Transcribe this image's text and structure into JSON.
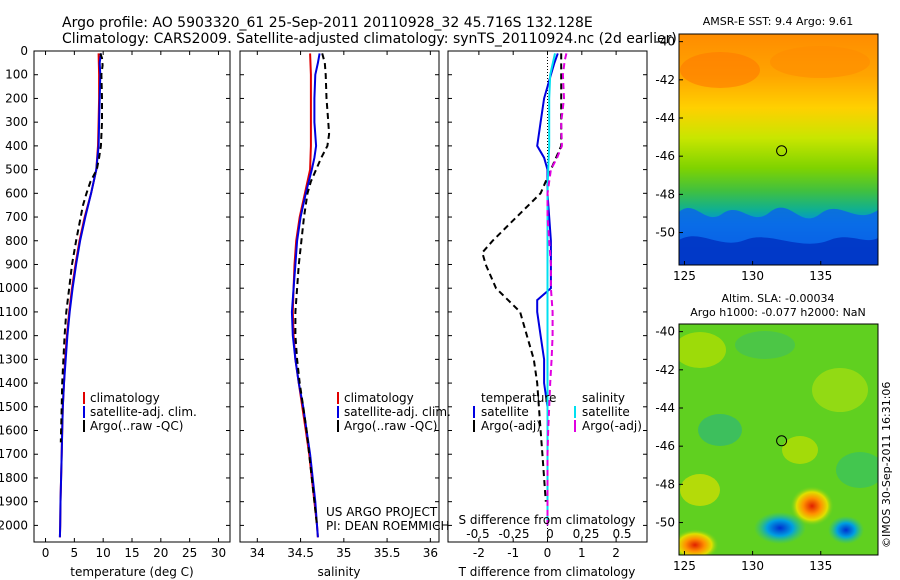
{
  "header": {
    "line1": "Argo profile: AO 5903320_61 25-Sep-2011 20110928_32 45.716S 132.128E",
    "line2": "Climatology: CARS2009. Satellite-adjusted climatology: synTS_20110924.nc (2d earlier)"
  },
  "depth_ticks": [
    0,
    100,
    200,
    300,
    400,
    500,
    600,
    700,
    800,
    900,
    1000,
    1100,
    1200,
    1300,
    1400,
    1500,
    1600,
    1700,
    1800,
    1900,
    2000
  ],
  "chart_data": [
    {
      "type": "line",
      "panel": "temperature",
      "xlabel": "temperature (deg C)",
      "xticks": [
        0,
        5,
        10,
        15,
        20,
        25,
        30
      ],
      "xlim": [
        -2,
        32
      ],
      "ylim": [
        2070,
        0
      ],
      "legend": [
        "climatology",
        "satellite-adj. clim.",
        "Argo(..raw -QC)"
      ],
      "series": [
        {
          "name": "climatology",
          "color": "#e00000",
          "dash": "",
          "depth": [
            10,
            100,
            200,
            300,
            400,
            500,
            600,
            700,
            800,
            900,
            1000,
            1100,
            1200,
            1300,
            1400,
            1500,
            1600,
            1700,
            1800,
            1900,
            2000,
            2050
          ],
          "values": [
            9.2,
            9.3,
            9.3,
            9.2,
            9.1,
            8.8,
            7.9,
            6.8,
            5.9,
            5.2,
            4.6,
            4.1,
            3.7,
            3.4,
            3.2,
            3.0,
            2.9,
            2.8,
            2.7,
            2.6,
            2.55,
            2.5
          ]
        },
        {
          "name": "satellite-adj. clim.",
          "color": "#0000e0",
          "dash": "",
          "depth": [
            10,
            50,
            100,
            200,
            300,
            400,
            500,
            600,
            700,
            800,
            900,
            1000,
            1100,
            1200,
            1300,
            1400,
            1500,
            1600,
            1700,
            1800,
            1900,
            2000,
            2050
          ],
          "values": [
            9.6,
            9.4,
            9.5,
            9.4,
            9.3,
            9.2,
            8.8,
            7.9,
            6.9,
            6.0,
            5.3,
            4.7,
            4.2,
            3.8,
            3.5,
            3.2,
            3.0,
            2.9,
            2.8,
            2.7,
            2.6,
            2.55,
            2.5
          ]
        },
        {
          "name": "Argo(..raw -QC)",
          "color": "#000000",
          "dash": "6,4",
          "depth": [
            10,
            30,
            60,
            100,
            200,
            300,
            400,
            450,
            500,
            550,
            600,
            650,
            700,
            800,
            900,
            1000,
            1100,
            1200,
            1300,
            1400,
            1500,
            1600,
            1650
          ],
          "values": [
            9.5,
            9.8,
            9.9,
            9.7,
            9.8,
            9.8,
            9.6,
            9.3,
            8.9,
            7.8,
            7.1,
            6.5,
            6.1,
            5.3,
            4.6,
            4.1,
            3.6,
            3.3,
            3.1,
            2.9,
            2.8,
            2.7,
            2.65
          ]
        }
      ]
    },
    {
      "type": "line",
      "panel": "salinity",
      "xlabel": "salinity",
      "xticks": [
        34,
        34.5,
        35,
        35.5,
        36
      ],
      "xlim": [
        33.8,
        36.1
      ],
      "ylim": [
        2070,
        0
      ],
      "legend": [
        "climatology",
        "satellite-adj. clim.",
        "Argo(..raw -QC)"
      ],
      "series": [
        {
          "name": "climatology",
          "color": "#e00000",
          "dash": "",
          "depth": [
            10,
            100,
            200,
            300,
            400,
            500,
            600,
            700,
            800,
            900,
            1000,
            1100,
            1200,
            1300,
            1400,
            1500,
            1600,
            1700,
            1800,
            1900,
            2000,
            2050
          ],
          "values": [
            34.61,
            34.62,
            34.62,
            34.62,
            34.62,
            34.61,
            34.55,
            34.49,
            34.45,
            34.43,
            34.42,
            34.41,
            34.42,
            34.44,
            34.48,
            34.52,
            34.56,
            34.6,
            34.63,
            34.66,
            34.69,
            34.7
          ]
        },
        {
          "name": "satellite-adj. clim.",
          "color": "#0000e0",
          "dash": "",
          "depth": [
            10,
            50,
            100,
            200,
            300,
            400,
            450,
            500,
            600,
            700,
            800,
            900,
            1000,
            1100,
            1200,
            1300,
            1400,
            1500,
            1600,
            1700,
            1800,
            1900,
            2000,
            2050
          ],
          "values": [
            34.72,
            34.7,
            34.67,
            34.66,
            34.66,
            34.68,
            34.66,
            34.63,
            34.56,
            34.5,
            34.46,
            34.44,
            34.42,
            34.4,
            34.41,
            34.44,
            34.48,
            34.53,
            34.57,
            34.61,
            34.64,
            34.67,
            34.69,
            34.7
          ]
        },
        {
          "name": "Argo(..raw -QC)",
          "color": "#000000",
          "dash": "6,4",
          "depth": [
            10,
            50,
            100,
            200,
            300,
            350,
            400,
            450,
            500,
            550,
            600,
            700,
            800,
            900,
            1000,
            1100,
            1200,
            1300,
            1400,
            1500,
            1600,
            1700,
            1800,
            1900,
            2000
          ],
          "values": [
            34.75,
            34.78,
            34.79,
            34.8,
            34.82,
            34.83,
            34.81,
            34.74,
            34.68,
            34.62,
            34.58,
            34.54,
            34.51,
            34.48,
            34.46,
            34.44,
            34.44,
            34.46,
            34.49,
            34.53,
            34.57,
            34.6,
            34.63,
            34.66,
            34.69
          ]
        }
      ]
    },
    {
      "type": "line",
      "panel": "difference",
      "xlabel": "T difference from climatology",
      "xlabel2": "S difference from climatology",
      "xticks": [
        -2,
        -1,
        0,
        1,
        2
      ],
      "xticks2": [
        "-0.5",
        "-0.25",
        "0",
        "0.25",
        "0.5"
      ],
      "xlim": [
        -2.9,
        2.9
      ],
      "ylim": [
        2070,
        0
      ],
      "legend_temperature_title": "temperature",
      "legend_salinity_title": "salinity",
      "legend": [
        "satellite",
        "Argo(-adj)",
        "satellite",
        "Argo(-adj)"
      ],
      "series": [
        {
          "name": "temperature satellite",
          "color": "#0000e0",
          "dash": "",
          "depth": [
            10,
            50,
            100,
            150,
            200,
            300,
            400,
            450,
            500,
            550,
            600,
            700,
            800,
            900,
            1000,
            1050,
            1100,
            1200,
            1300,
            1400,
            1500,
            1600,
            1700,
            1800,
            1900,
            2000
          ],
          "values": [
            0.3,
            0.2,
            0.1,
            0.0,
            -0.1,
            -0.2,
            -0.3,
            -0.1,
            0.0,
            0.0,
            0.0,
            0.05,
            0.1,
            0.1,
            0.1,
            -0.3,
            -0.3,
            -0.2,
            -0.1,
            -0.1,
            0.0,
            0.0,
            0.0,
            0.0,
            0.0,
            0.0
          ]
        },
        {
          "name": "temperature Argo(-adj)",
          "color": "#000000",
          "dash": "6,4",
          "depth": [
            10,
            100,
            200,
            300,
            400,
            500,
            600,
            700,
            800,
            850,
            900,
            1000,
            1100,
            1200,
            1300,
            1400,
            1500,
            1600,
            1700,
            1800,
            1900
          ],
          "values": [
            0.4,
            0.4,
            0.4,
            0.4,
            0.4,
            0.1,
            -0.2,
            -0.9,
            -1.6,
            -1.9,
            -1.8,
            -1.5,
            -0.8,
            -0.6,
            -0.4,
            -0.3,
            -0.25,
            -0.2,
            -0.15,
            -0.1,
            -0.05
          ]
        },
        {
          "name": "salinity satellite",
          "color": "#00e0f0",
          "dash": "",
          "depth": [
            10,
            100,
            200,
            300,
            400,
            500,
            600,
            700,
            800,
            900,
            1000,
            1100,
            1200,
            1300,
            1400,
            1500,
            1600,
            1700,
            1800,
            1900,
            2000
          ],
          "values": [
            0.22,
            0.08,
            0.05,
            0.05,
            0.05,
            0.02,
            0.0,
            0.0,
            0.0,
            0.0,
            0.0,
            0.0,
            0.0,
            0.0,
            0.0,
            0.0,
            0.0,
            0.0,
            0.0,
            0.0,
            0.0
          ]
        },
        {
          "name": "salinity Argo(-adj)",
          "color": "#e000e0",
          "dash": "6,4",
          "depth": [
            10,
            40,
            100,
            200,
            300,
            400,
            450,
            500,
            600,
            700,
            800,
            900,
            1000,
            1100,
            1200,
            1300,
            1400,
            1500,
            1600,
            1700,
            1800,
            1900,
            2000
          ],
          "values": [
            0.55,
            0.5,
            0.45,
            0.48,
            0.4,
            0.42,
            0.28,
            0.1,
            0.0,
            0.0,
            0.05,
            0.1,
            0.1,
            0.15,
            0.15,
            0.12,
            0.08,
            0.05,
            0.02,
            0.0,
            0.0,
            0.0,
            0.0
          ]
        }
      ]
    }
  ],
  "credits": {
    "line1": "US ARGO PROJECT",
    "line2": "PI: DEAN ROEMMICH"
  },
  "maps": {
    "sst": {
      "title": "AMSR-E SST: 9.4 Argo: 9.61",
      "lon_ticks": [
        "125",
        "130",
        "135"
      ],
      "lat_ticks": [
        "-40",
        "-42",
        "-44",
        "-46",
        "-48",
        "-50"
      ],
      "marker_lon": 132.128,
      "marker_lat": -45.716
    },
    "sla": {
      "title1": "Altim. SLA: -0.00034",
      "title2": "Argo h1000: -0.077 h2000: NaN",
      "lon_ticks": [
        "125",
        "130",
        "135"
      ],
      "lat_ticks": [
        "-40",
        "-42",
        "-44",
        "-46",
        "-48",
        "-50"
      ],
      "marker_lon": 132.128,
      "marker_lat": -45.716
    }
  },
  "stamp": "©IMOS 30-Sep-2011 16:31:06"
}
